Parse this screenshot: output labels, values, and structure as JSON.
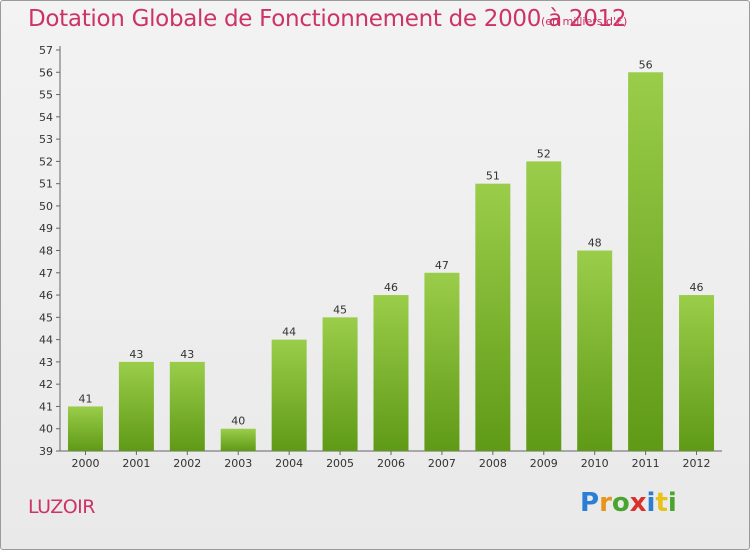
{
  "header": {
    "title": "Dotation Globale de Fonctionnement de 2000 à 2012",
    "unit_note": "(en milliers d'€)"
  },
  "footer": {
    "commune": "LUZOIR",
    "logo": "Proxiti"
  },
  "colors": {
    "title": "#cc3366",
    "bar_top": "#9acd4a",
    "bar_bottom": "#5f9a16",
    "background": "#eeeeee"
  },
  "chart_data": {
    "type": "bar",
    "title": "Dotation Globale de Fonctionnement de 2000 à 2012",
    "subtitle": "(en milliers d'€)",
    "xlabel": "",
    "ylabel": "",
    "categories": [
      "2000",
      "2001",
      "2002",
      "2003",
      "2004",
      "2005",
      "2006",
      "2007",
      "2008",
      "2009",
      "2010",
      "2011",
      "2012"
    ],
    "values": [
      41,
      43,
      43,
      40,
      44,
      45,
      46,
      47,
      51,
      52,
      48,
      56,
      46
    ],
    "ylim": [
      39,
      57
    ],
    "yticks": [
      39,
      40,
      41,
      42,
      43,
      44,
      45,
      46,
      47,
      48,
      49,
      50,
      51,
      52,
      53,
      54,
      55,
      56,
      57
    ],
    "grid": false,
    "data_labels": true,
    "legend": "none"
  }
}
